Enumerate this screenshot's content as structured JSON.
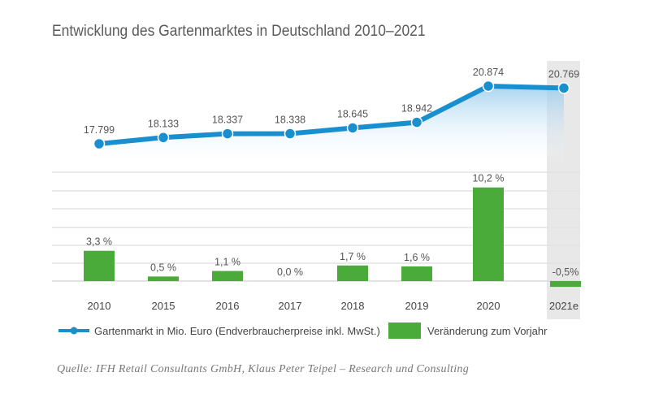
{
  "chart_data": {
    "type": "bar+line",
    "title": "Entwicklung des Gartenmarktes in Deutschland 2010–2021",
    "categories": [
      "2010",
      "2015",
      "2016",
      "2017",
      "2018",
      "2019",
      "2020",
      "2021e"
    ],
    "series": [
      {
        "name": "Gartenmarkt in Mio. Euro (Endverbraucherpreise inkl. MwSt.)",
        "type": "line",
        "color": "#1a8fcf",
        "values": [
          17799,
          18133,
          18337,
          18338,
          18645,
          18942,
          20874,
          20769
        ],
        "labels": [
          "17.799",
          "18.133",
          "18.337",
          "18.338",
          "18.645",
          "18.942",
          "20.874",
          "20.769"
        ]
      },
      {
        "name": "Veränderung zum Vorjahr",
        "type": "bar",
        "color": "#4bab3a",
        "values": [
          3.3,
          0.5,
          1.1,
          0.0,
          1.7,
          1.6,
          10.2,
          -0.5
        ],
        "labels": [
          "3,3 %",
          "0,5 %",
          "1,1 %",
          "0,0 %",
          "1,7 %",
          "1,6 %",
          "10,2 %",
          "-0,5%"
        ]
      }
    ],
    "highlighted_category": "2021e",
    "grid": true,
    "legend": "bottom",
    "source": "Quelle: IFH Retail Consultants GmbH, Klaus Peter Teipel – Research und Consulting"
  }
}
